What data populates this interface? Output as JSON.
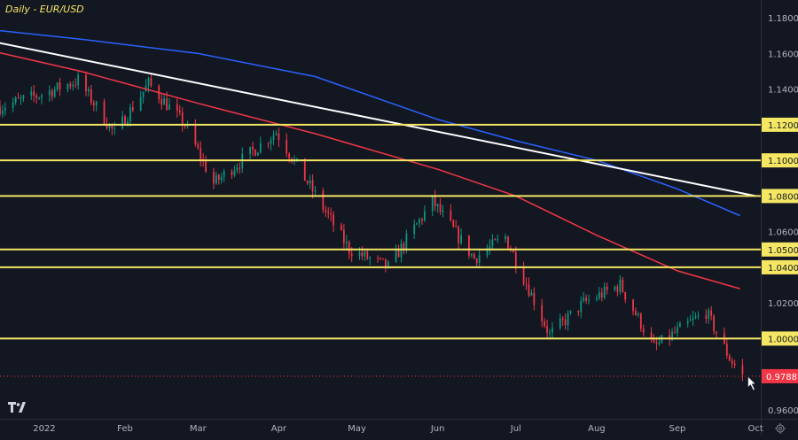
{
  "chart_title": "Daily - EUR/USD",
  "chart_data": {
    "type": "candlestick",
    "title": "Daily - EUR/USD",
    "ylim": [
      0.955,
      1.19
    ],
    "y_ticks": [
      {
        "value": 1.18,
        "label": "1.18000"
      },
      {
        "value": 1.16,
        "label": "1.16000"
      },
      {
        "value": 1.14,
        "label": "1.14000"
      },
      {
        "value": 1.12,
        "label": "1.12000"
      },
      {
        "value": 1.1,
        "label": "1.10000"
      },
      {
        "value": 1.08,
        "label": "1.08000"
      },
      {
        "value": 1.06,
        "label": "1.06000"
      },
      {
        "value": 1.05,
        "label": "1.05000"
      },
      {
        "value": 1.04,
        "label": "1.04000"
      },
      {
        "value": 1.02,
        "label": "1.02000"
      },
      {
        "value": 1.0,
        "label": "1.00000"
      },
      {
        "value": 0.96,
        "label": "0.96000"
      }
    ],
    "highlighted_levels": [
      1.12,
      1.1,
      1.08,
      1.05,
      1.04,
      1.0
    ],
    "current_price": {
      "value": 0.97887,
      "label": "0.97887"
    },
    "x_labels": [
      {
        "date": "2022-01-01",
        "label": "2022"
      },
      {
        "date": "2022-02-01",
        "label": "Feb"
      },
      {
        "date": "2022-03-01",
        "label": "Mar"
      },
      {
        "date": "2022-04-01",
        "label": "Apr"
      },
      {
        "date": "2022-05-01",
        "label": "May"
      },
      {
        "date": "2022-06-01",
        "label": "Jun"
      },
      {
        "date": "2022-07-01",
        "label": "Jul"
      },
      {
        "date": "2022-08-01",
        "label": "Aug"
      },
      {
        "date": "2022-09-01",
        "label": "Sep"
      },
      {
        "date": "2022-10-01",
        "label": "Oct"
      }
    ],
    "price_path": [
      {
        "date": "2021-12-15",
        "close": 1.13
      },
      {
        "date": "2021-12-31",
        "close": 1.137
      },
      {
        "date": "2022-01-14",
        "close": 1.145
      },
      {
        "date": "2022-01-28",
        "close": 1.115
      },
      {
        "date": "2022-02-10",
        "close": 1.143
      },
      {
        "date": "2022-02-24",
        "close": 1.12
      },
      {
        "date": "2022-03-07",
        "close": 1.087
      },
      {
        "date": "2022-03-31",
        "close": 1.116
      },
      {
        "date": "2022-04-28",
        "close": 1.05
      },
      {
        "date": "2022-05-13",
        "close": 1.04
      },
      {
        "date": "2022-05-30",
        "close": 1.077
      },
      {
        "date": "2022-06-15",
        "close": 1.045
      },
      {
        "date": "2022-06-27",
        "close": 1.057
      },
      {
        "date": "2022-07-14",
        "close": 1.002
      },
      {
        "date": "2022-07-27",
        "close": 1.02
      },
      {
        "date": "2022-08-10",
        "close": 1.03
      },
      {
        "date": "2022-08-23",
        "close": 0.995
      },
      {
        "date": "2022-09-12",
        "close": 1.015
      },
      {
        "date": "2022-09-21",
        "close": 0.989
      },
      {
        "date": "2022-09-26",
        "close": 0.979
      }
    ],
    "series": [
      {
        "color": "#f23645",
        "points": [
          [
            "2021-12-01",
            1.165
          ],
          [
            "2022-01-15",
            1.15
          ],
          [
            "2022-03-01",
            1.132
          ],
          [
            "2022-04-15",
            1.115
          ],
          [
            "2022-06-01",
            1.095
          ],
          [
            "2022-07-01",
            1.08
          ],
          [
            "2022-08-01",
            1.058
          ],
          [
            "2022-09-01",
            1.038
          ],
          [
            "2022-09-25",
            1.028
          ]
        ]
      },
      {
        "color": "#2962ff",
        "points": [
          [
            "2021-12-01",
            1.175
          ],
          [
            "2022-01-15",
            1.168
          ],
          [
            "2022-03-01",
            1.16
          ],
          [
            "2022-04-15",
            1.147
          ],
          [
            "2022-06-01",
            1.123
          ],
          [
            "2022-07-01",
            1.111
          ],
          [
            "2022-08-01",
            1.1
          ],
          [
            "2022-09-01",
            1.084
          ],
          [
            "2022-09-25",
            1.069
          ]
        ]
      },
      {
        "color": "#ffffff",
        "points": [
          [
            "2021-12-01",
            1.17
          ],
          [
            "2022-10-01",
            1.08
          ]
        ]
      }
    ],
    "grid": false
  }
}
